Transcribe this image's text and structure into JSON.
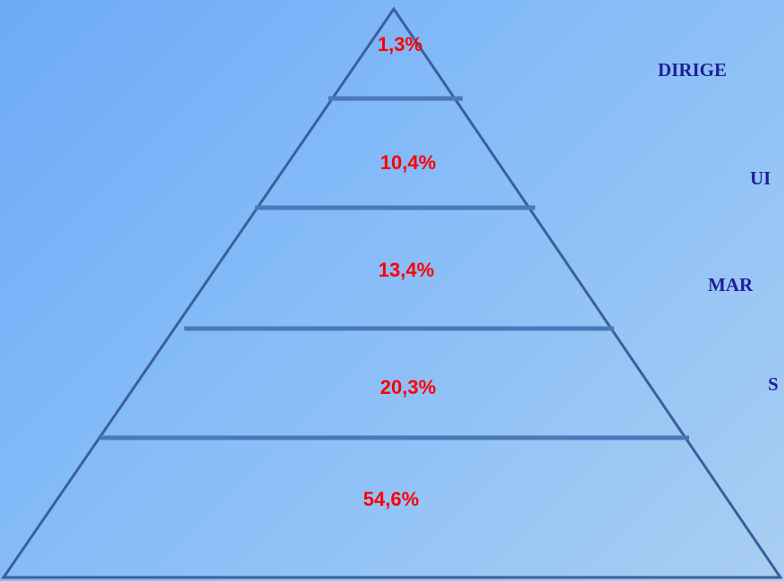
{
  "diagram": {
    "levels": [
      {
        "percent": "1,3%",
        "category": "DIRIGE"
      },
      {
        "percent": "10,4%",
        "category": "UI"
      },
      {
        "percent": "13,4%",
        "category": "MAR"
      },
      {
        "percent": "20,3%",
        "category": "S"
      },
      {
        "percent": "54,6%",
        "category": ""
      }
    ],
    "colors": {
      "outline": "#3b5f9c",
      "divider": "#4a78b8",
      "percent_text": "#ff0000",
      "category_text": "#1f1f99"
    }
  }
}
